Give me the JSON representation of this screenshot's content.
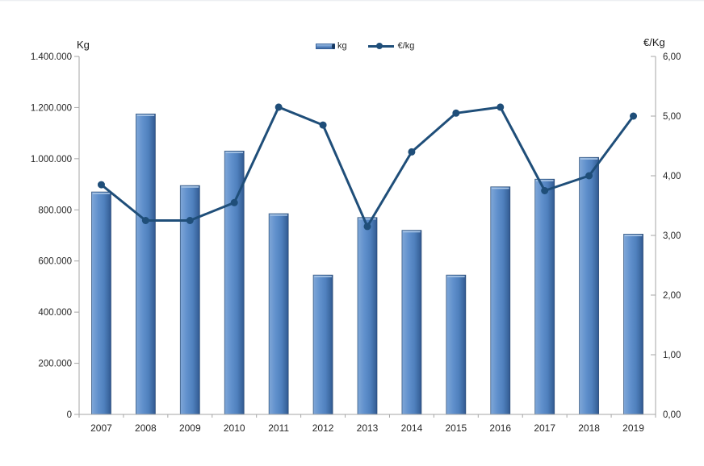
{
  "chart_data": {
    "type": "combo-bar-line",
    "title": "",
    "categories": [
      "2007",
      "2008",
      "2009",
      "2010",
      "2011",
      "2012",
      "2013",
      "2014",
      "2015",
      "2016",
      "2017",
      "2018",
      "2019"
    ],
    "series": [
      {
        "name": "kg",
        "type": "bar",
        "axis": "left",
        "values": [
          870000,
          1175000,
          895000,
          1030000,
          785000,
          545000,
          770000,
          720000,
          545000,
          890000,
          920000,
          1005000,
          705000
        ]
      },
      {
        "name": "€/kg",
        "type": "line",
        "axis": "right",
        "values": [
          3.85,
          3.25,
          3.25,
          3.55,
          5.15,
          4.85,
          3.15,
          4.4,
          5.05,
          5.15,
          3.75,
          4.0,
          5.0
        ]
      }
    ],
    "left_axis": {
      "title": "Kg",
      "min": 0,
      "max": 1400000,
      "tick_labels": [
        "0",
        "200.000",
        "400.000",
        "600.000",
        "800.000",
        "1.000.000",
        "1.200.000",
        "1.400.000"
      ]
    },
    "right_axis": {
      "title": "€/Kg",
      "min": 0,
      "max": 6,
      "tick_labels": [
        "0,00",
        "1,00",
        "2,00",
        "3,00",
        "4,00",
        "5,00",
        "6,00"
      ]
    },
    "legend": {
      "position": "top-center",
      "entries": [
        "kg",
        "€/kg"
      ]
    },
    "grid": false
  },
  "colors": {
    "bar_fill": "#4F80BD",
    "bar_fill_light": "#7FA7D8",
    "bar_fill_dark": "#2F5691",
    "bar_bevel": "#A9C5E5",
    "bar_border": "#24466F",
    "line": "#1F4E79",
    "axis": "#A6A6A6",
    "text": "#262626"
  }
}
